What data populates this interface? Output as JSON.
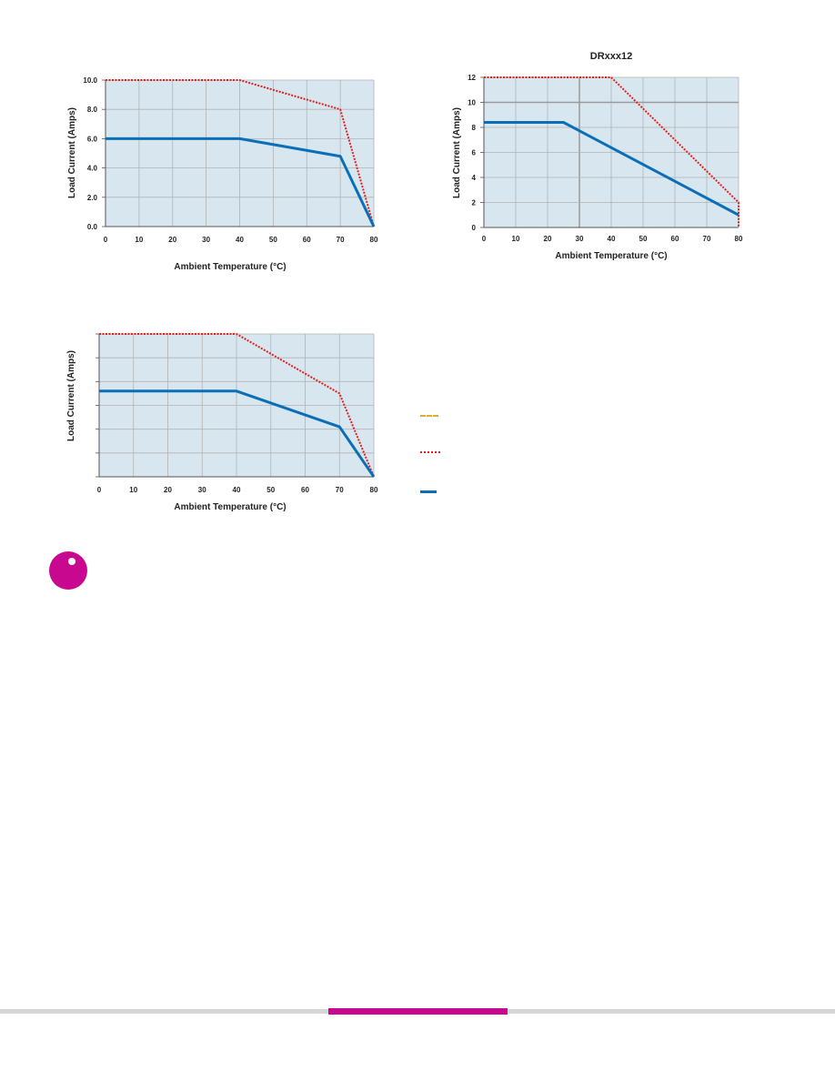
{
  "colors": {
    "plot_bg": "#d8e7ef",
    "grid": "#b3b3b3",
    "grid_major": "#9a9a9a",
    "axis": "#555555",
    "red": "#e0211d",
    "blue": "#0b6fb8",
    "gold": "#e0a92c",
    "magenta": "#c8088f",
    "footer_gray": "#d6d6d6"
  },
  "icons": {
    "info_badge": "info-circle-icon"
  },
  "chart_data": [
    {
      "type": "line",
      "title": "",
      "xlabel": "Ambient Temperature (°C)",
      "ylabel": "Load Current (Amps)",
      "xlim": [
        0,
        80
      ],
      "ylim": [
        0,
        10
      ],
      "xticks": [
        "0",
        "10",
        "20",
        "30",
        "40",
        "50",
        "60",
        "70",
        "80"
      ],
      "yticks": [
        "0.0",
        "2.0",
        "4.0",
        "6.0",
        "8.0",
        "10.0"
      ],
      "ytick_values": [
        0,
        2,
        4,
        6,
        8,
        10
      ],
      "grid": true,
      "series": [
        {
          "style": "dotted-red",
          "x": [
            0,
            40,
            70,
            80
          ],
          "y": [
            10,
            10,
            8,
            0
          ]
        },
        {
          "style": "solid-blue",
          "x": [
            0,
            40,
            70,
            80
          ],
          "y": [
            6,
            6,
            4.8,
            0
          ]
        }
      ]
    },
    {
      "type": "line",
      "title": "DRxxx12",
      "xlabel": "Ambient Temperature (°C)",
      "ylabel": "Load Current (Amps)",
      "xlim": [
        0,
        80
      ],
      "ylim": [
        0,
        12
      ],
      "xticks": [
        "0",
        "10",
        "20",
        "30",
        "40",
        "50",
        "60",
        "70",
        "80"
      ],
      "yticks": [
        "0",
        "2",
        "4",
        "6",
        "8",
        "10",
        "12"
      ],
      "ytick_values": [
        0,
        2,
        4,
        6,
        8,
        10,
        12
      ],
      "grid": true,
      "major_grid": {
        "x": 30,
        "y": 10
      },
      "series": [
        {
          "style": "dotted-red",
          "x": [
            0,
            40,
            80,
            80
          ],
          "y": [
            12,
            12,
            2,
            0
          ]
        },
        {
          "style": "solid-blue",
          "x": [
            0,
            25,
            80
          ],
          "y": [
            8.4,
            8.4,
            1
          ]
        }
      ]
    },
    {
      "type": "line",
      "title": "",
      "xlabel": "Ambient Temperature (°C)",
      "ylabel": "Load Current (Amps)",
      "xlim": [
        0,
        80
      ],
      "ylim": [
        0,
        6
      ],
      "xticks": [
        "0",
        "10",
        "20",
        "30",
        "40",
        "50",
        "60",
        "70",
        "80"
      ],
      "yticks": [
        "",
        "",
        "",
        "",
        "",
        "",
        ""
      ],
      "ytick_values": [
        0,
        1,
        2,
        3,
        4,
        5,
        6
      ],
      "grid": true,
      "series": [
        {
          "style": "dotted-red",
          "x": [
            0,
            40,
            70,
            80
          ],
          "y": [
            6,
            6,
            3.5,
            0
          ]
        },
        {
          "style": "solid-blue",
          "x": [
            0,
            40,
            70,
            80
          ],
          "y": [
            3.6,
            3.6,
            2.1,
            0
          ]
        }
      ]
    }
  ],
  "legend": {
    "items": [
      {
        "style": "dashed-gold",
        "label": ""
      },
      {
        "style": "dotted-red",
        "label": ""
      },
      {
        "style": "solid-blue",
        "label": ""
      }
    ]
  }
}
